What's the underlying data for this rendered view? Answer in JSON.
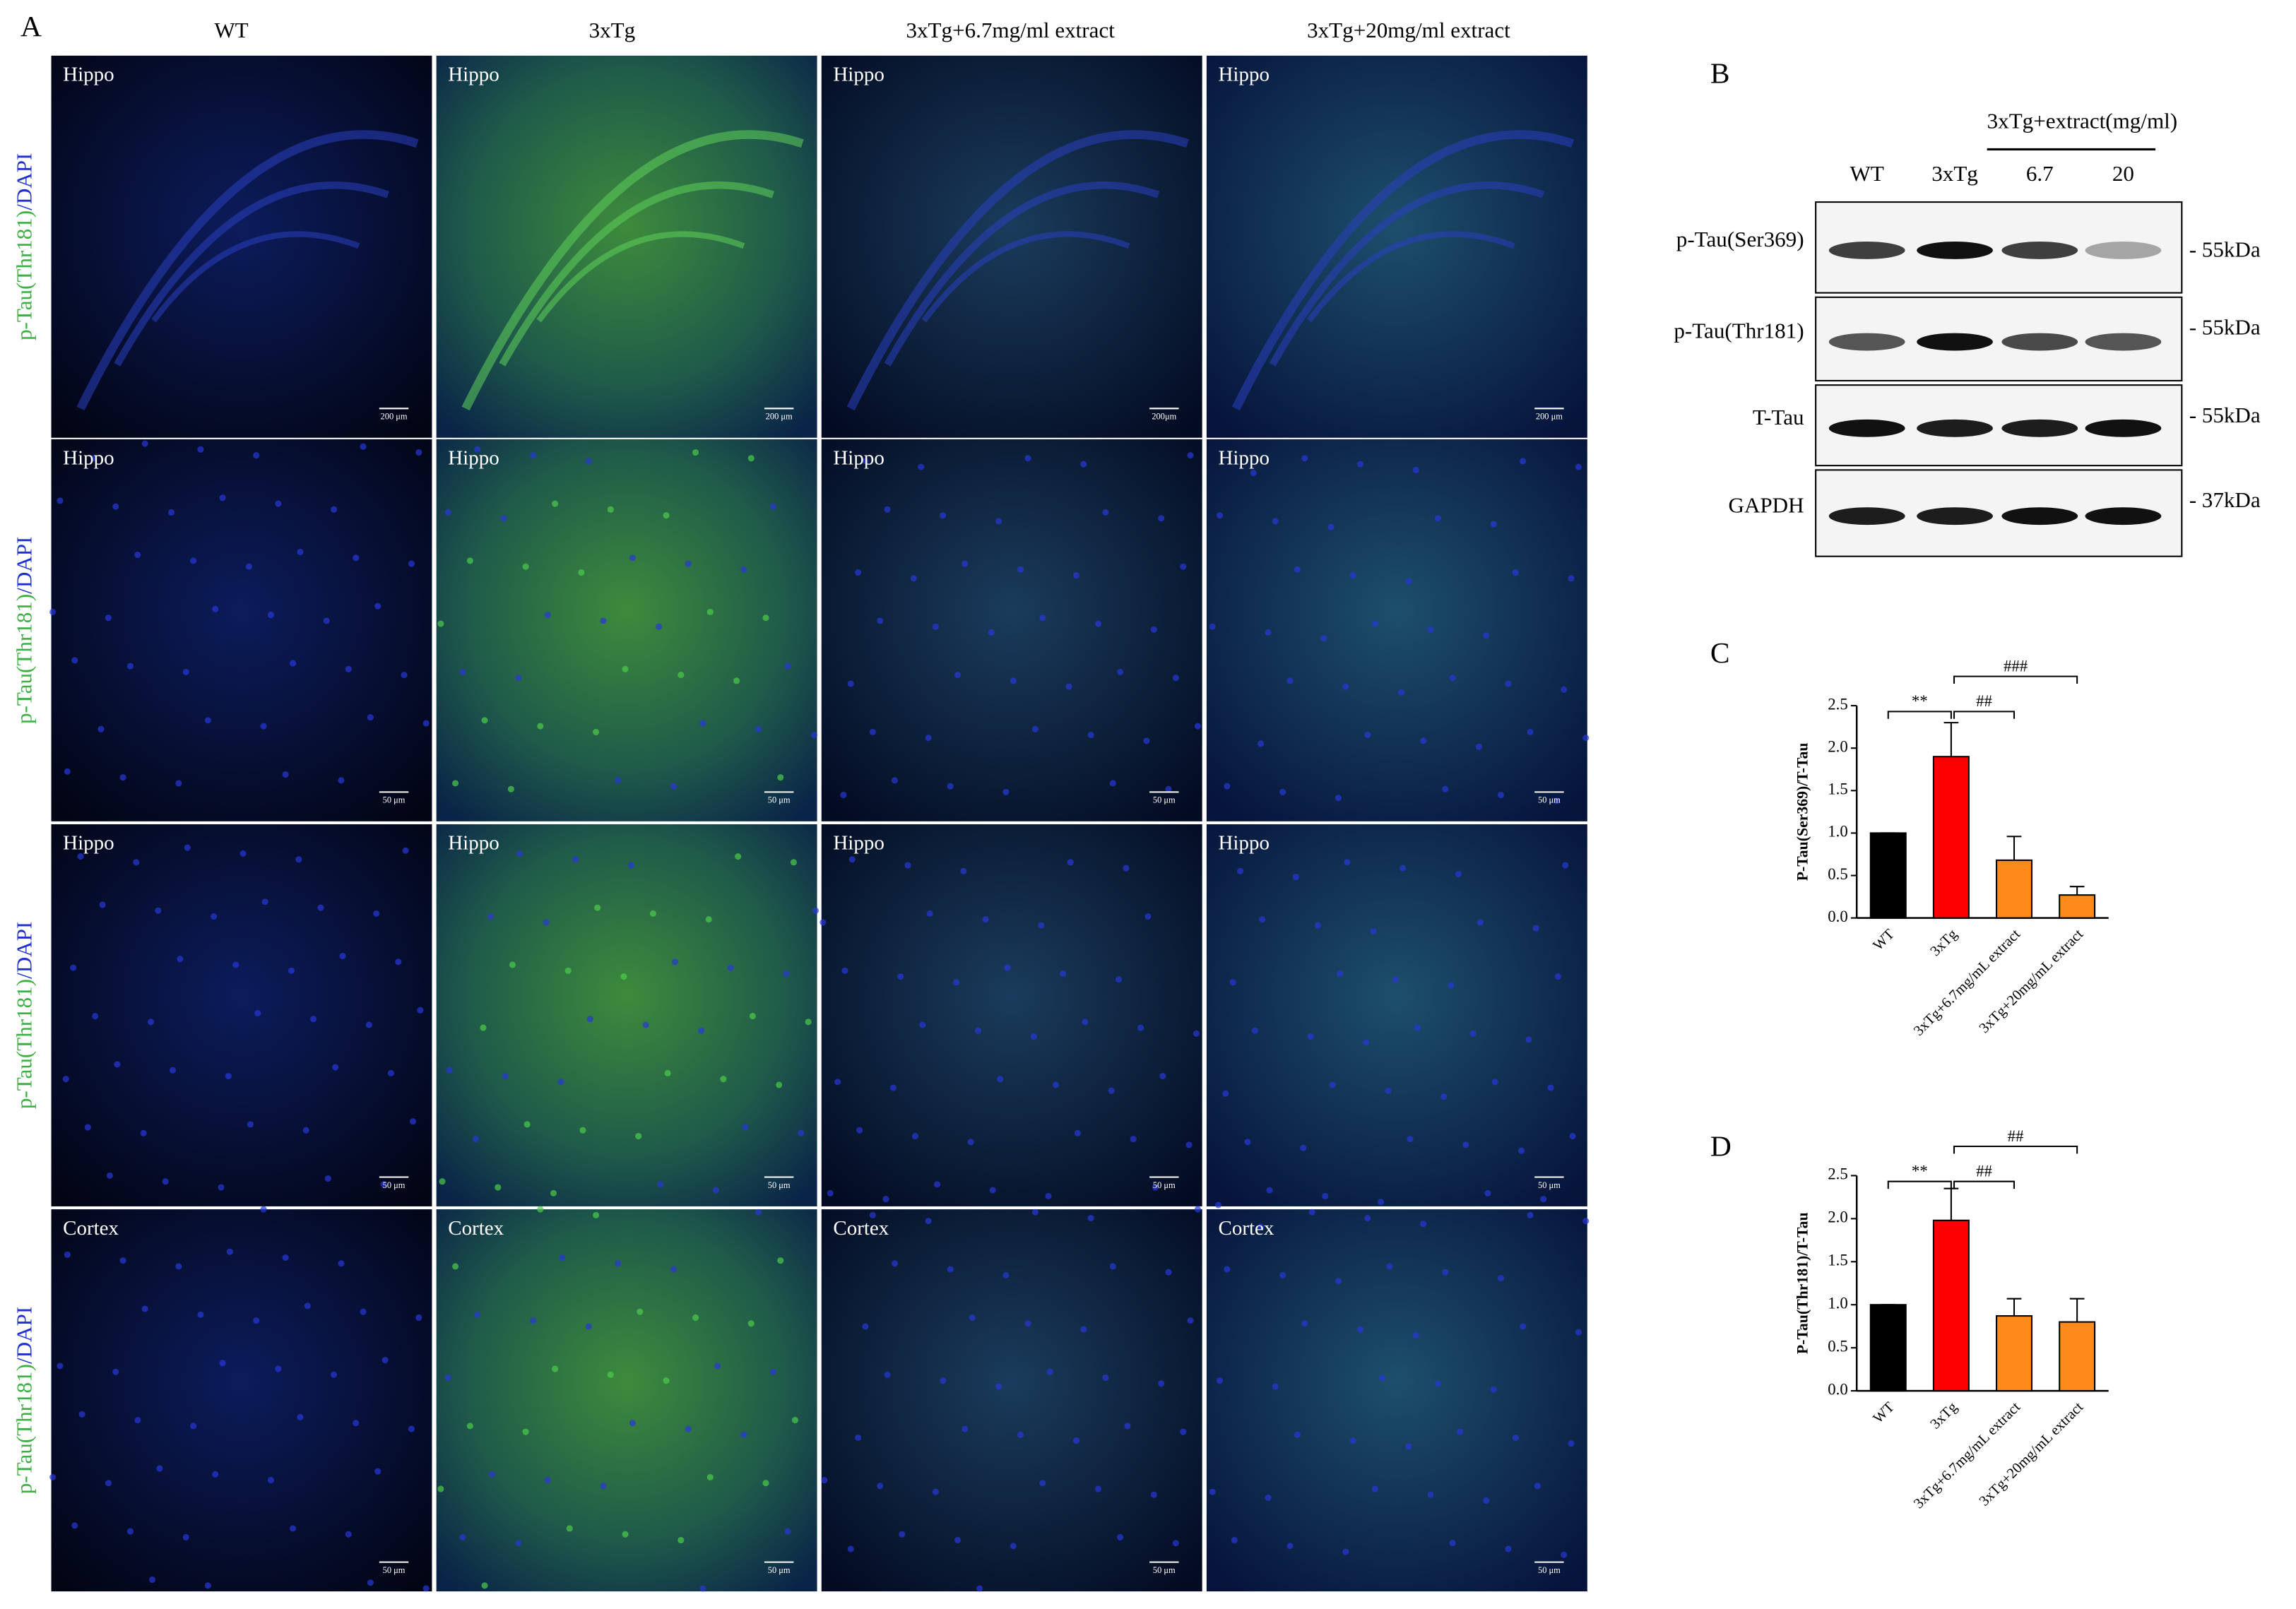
{
  "panel_a": {
    "label": "A",
    "columns": [
      "WT",
      "3xTg",
      "3xTg+6.7mg/ml extract",
      "3xTg+20mg/ml extract"
    ],
    "row_label_marker": "p-Tau(Thr181)",
    "row_label_stain": "/DAPI",
    "rows": [
      {
        "region": "Hippo",
        "scale_bars": [
          "200 μm",
          "200 μm",
          "200μm",
          "200 μm"
        ]
      },
      {
        "region": "Hippo",
        "scale_bars": [
          "50 μm",
          "50 μm",
          "50 μm",
          "50 μm"
        ]
      },
      {
        "region": "Hippo",
        "scale_bars": [
          "50 μm",
          "50 μm",
          "50 μm",
          "50 μm"
        ]
      },
      {
        "region": "Cortex",
        "scale_bars": [
          "50 μm",
          "50 μm",
          "50 μm",
          "50 μm"
        ]
      }
    ]
  },
  "panel_b": {
    "label": "B",
    "group": "3xTg+extract(mg/ml)",
    "lanes": [
      "WT",
      "3xTg",
      "6.7",
      "20"
    ],
    "blots": [
      {
        "name": "p-Tau(Ser369)",
        "size": "- 55kDa"
      },
      {
        "name": "p-Tau(Thr181)",
        "size": "- 55kDa"
      },
      {
        "name": "T-Tau",
        "size": "- 55kDa"
      },
      {
        "name": "GAPDH",
        "size": "- 37kDa"
      }
    ]
  },
  "chart_data": [
    {
      "type": "bar",
      "panel": "C",
      "y_label": "P-Tau(Ser369)/T-Tau",
      "categories": [
        "WT",
        "3xTg",
        "3xTg+6.7mg/mL extract",
        "3xTg+20mg/mL extract"
      ],
      "values": [
        1.0,
        1.9,
        0.68,
        0.27
      ],
      "errors": [
        0,
        0.4,
        0.28,
        0.1
      ],
      "colors": [
        "#000000",
        "#ff0000",
        "#ff8a1c",
        "#ff8a1c"
      ],
      "ylim": [
        0,
        2.5
      ],
      "yticks": [
        {
          "value": 0,
          "label": "0.0"
        },
        0.5,
        {
          "value": 1,
          "label": "1.0"
        },
        1.5,
        {
          "value": 2,
          "label": "2.0"
        },
        2.5
      ],
      "annotations": [
        {
          "text": "**",
          "between": [
            "WT",
            "3xTg"
          ]
        },
        {
          "text": "##",
          "between": [
            "3xTg",
            "3xTg+6.7mg/mL extract"
          ]
        },
        {
          "text": "###",
          "between": [
            "3xTg",
            "3xTg+20mg/mL extract"
          ]
        }
      ]
    },
    {
      "type": "bar",
      "panel": "D",
      "y_label": "P-Tau(Thr181)/T-Tau",
      "categories": [
        "WT",
        "3xTg",
        "3xTg+6.7mg/mL extract",
        "3xTg+20mg/mL extract"
      ],
      "values": [
        1.0,
        1.98,
        0.87,
        0.8
      ],
      "errors": [
        0,
        0.37,
        0.2,
        0.27
      ],
      "colors": [
        "#000000",
        "#ff0000",
        "#ff8a1c",
        "#ff8a1c"
      ],
      "ylim": [
        0,
        2.5
      ],
      "yticks": [
        {
          "value": 0,
          "label": "0.0"
        },
        0.5,
        {
          "value": 1,
          "label": "1.0"
        },
        1.5,
        {
          "value": 2,
          "label": "2.0"
        },
        2.5
      ],
      "annotations": [
        {
          "text": "**",
          "between": [
            "WT",
            "3xTg"
          ]
        },
        {
          "text": "##",
          "between": [
            "3xTg",
            "3xTg+6.7mg/mL extract"
          ]
        },
        {
          "text": "##",
          "between": [
            "3xTg",
            "3xTg+20mg/mL extract"
          ]
        }
      ]
    }
  ]
}
